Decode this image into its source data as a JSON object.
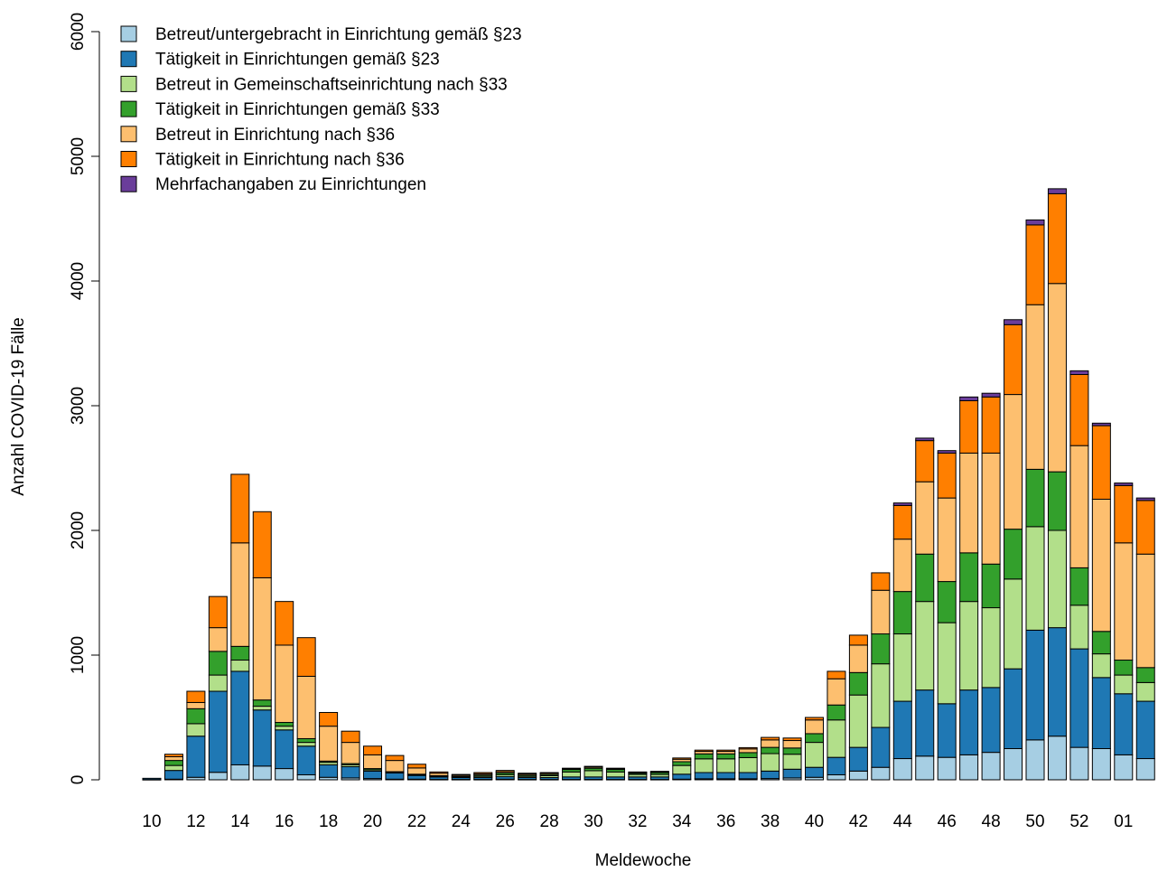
{
  "chart_data": {
    "type": "bar",
    "stacked": true,
    "title": "",
    "xlabel": "Meldewoche",
    "ylabel": "Anzahl COVID-19 Fälle",
    "ylim": [
      0,
      6000
    ],
    "yticks": [
      0,
      1000,
      2000,
      3000,
      4000,
      5000,
      6000
    ],
    "grid": false,
    "legend_position": "top-left",
    "categories": [
      "10",
      "11",
      "12",
      "13",
      "14",
      "15",
      "16",
      "17",
      "18",
      "19",
      "20",
      "21",
      "22",
      "23",
      "24",
      "25",
      "26",
      "27",
      "28",
      "29",
      "30",
      "31",
      "32",
      "33",
      "34",
      "35",
      "36",
      "37",
      "38",
      "39",
      "40",
      "41",
      "42",
      "43",
      "44",
      "45",
      "46",
      "47",
      "48",
      "49",
      "50",
      "51",
      "52",
      "53",
      "01",
      "02"
    ],
    "xtick_labels": [
      "10",
      "12",
      "14",
      "16",
      "18",
      "20",
      "22",
      "24",
      "26",
      "28",
      "30",
      "32",
      "34",
      "36",
      "38",
      "40",
      "42",
      "44",
      "46",
      "48",
      "50",
      "52",
      "01"
    ],
    "series": [
      {
        "name": "Betreut/untergebracht in Einrichtung gemäß §23",
        "color": "#a6cee3",
        "values": [
          2,
          5,
          20,
          60,
          120,
          110,
          90,
          40,
          20,
          15,
          10,
          5,
          5,
          3,
          3,
          3,
          5,
          3,
          3,
          3,
          3,
          3,
          3,
          3,
          5,
          8,
          8,
          8,
          10,
          15,
          20,
          40,
          70,
          100,
          170,
          190,
          180,
          200,
          220,
          250,
          320,
          350,
          260,
          250,
          200,
          170
        ]
      },
      {
        "name": "Tätigkeit in Einrichtungen gemäß §23",
        "color": "#1f78b4",
        "values": [
          10,
          70,
          330,
          650,
          750,
          450,
          310,
          230,
          100,
          90,
          60,
          50,
          30,
          20,
          15,
          15,
          20,
          15,
          15,
          20,
          20,
          20,
          20,
          20,
          40,
          50,
          50,
          50,
          60,
          70,
          80,
          140,
          190,
          320,
          460,
          530,
          430,
          520,
          520,
          640,
          880,
          870,
          790,
          570,
          490,
          460
        ]
      },
      {
        "name": "Betreut in Gemeinschaftseinrichtung nach §33",
        "color": "#b2df8a",
        "values": [
          0,
          40,
          100,
          130,
          90,
          30,
          30,
          30,
          20,
          15,
          10,
          5,
          5,
          5,
          5,
          10,
          15,
          10,
          15,
          40,
          50,
          40,
          20,
          20,
          70,
          110,
          110,
          120,
          140,
          120,
          200,
          300,
          420,
          510,
          540,
          710,
          650,
          710,
          640,
          720,
          830,
          780,
          350,
          190,
          150,
          150
        ]
      },
      {
        "name": "Tätigkeit in Einrichtungen gemäß §33",
        "color": "#33a02c",
        "values": [
          0,
          40,
          120,
          190,
          110,
          50,
          30,
          30,
          10,
          10,
          10,
          5,
          5,
          5,
          5,
          10,
          15,
          10,
          10,
          20,
          20,
          20,
          10,
          15,
          30,
          40,
          40,
          40,
          50,
          50,
          70,
          120,
          180,
          240,
          340,
          380,
          330,
          390,
          350,
          400,
          460,
          470,
          300,
          180,
          120,
          120
        ]
      },
      {
        "name": "Betreut in Einrichtung nach §36",
        "color": "#fdbf6f",
        "values": [
          0,
          30,
          50,
          190,
          830,
          980,
          620,
          500,
          280,
          170,
          110,
          90,
          50,
          20,
          10,
          10,
          10,
          10,
          10,
          5,
          10,
          5,
          5,
          5,
          20,
          20,
          20,
          30,
          60,
          60,
          110,
          210,
          220,
          350,
          420,
          580,
          670,
          800,
          890,
          1080,
          1320,
          1510,
          980,
          1060,
          940,
          910
        ]
      },
      {
        "name": "Tätigkeit in Einrichtung nach §36",
        "color": "#ff7f00",
        "values": [
          0,
          20,
          90,
          250,
          550,
          530,
          350,
          310,
          110,
          90,
          70,
          40,
          30,
          10,
          5,
          10,
          10,
          5,
          5,
          5,
          5,
          5,
          5,
          5,
          10,
          10,
          10,
          10,
          20,
          20,
          20,
          60,
          80,
          140,
          270,
          330,
          360,
          420,
          450,
          560,
          640,
          720,
          570,
          590,
          460,
          430
        ]
      },
      {
        "name": "Mehrfachangaben zu Einrichtungen",
        "color": "#6a3d9a",
        "values": [
          0,
          0,
          0,
          0,
          0,
          0,
          0,
          0,
          0,
          0,
          0,
          0,
          0,
          0,
          0,
          0,
          0,
          0,
          0,
          0,
          0,
          0,
          0,
          0,
          0,
          0,
          0,
          0,
          0,
          0,
          0,
          0,
          0,
          0,
          20,
          20,
          20,
          30,
          30,
          40,
          40,
          40,
          30,
          20,
          20,
          20
        ]
      }
    ]
  }
}
